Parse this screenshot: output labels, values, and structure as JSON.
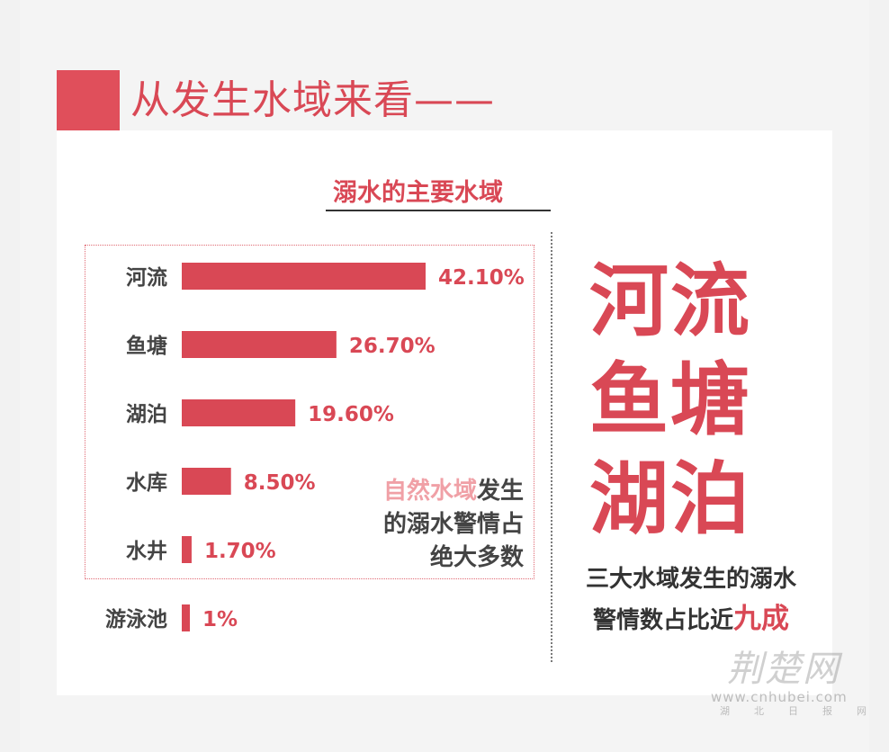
{
  "header": {
    "title": "从发生水域来看——"
  },
  "chart_data": {
    "type": "bar",
    "orientation": "horizontal",
    "title": "溺水的主要水域",
    "categories": [
      "河流",
      "鱼塘",
      "湖泊",
      "水库",
      "水井",
      "游泳池"
    ],
    "values": [
      42.1,
      26.7,
      19.6,
      8.5,
      1.7,
      1.0
    ],
    "value_labels": [
      "42.10%",
      "26.70%",
      "19.60%",
      "8.50%",
      "1.70%",
      "1%"
    ],
    "bar_color": "#d94855",
    "grid": false
  },
  "note": {
    "highlight": "自然水域",
    "rest_line1": "发生",
    "line2": "的溺水警情占",
    "line3": "绝大多数"
  },
  "highlight_words": [
    "河流",
    "鱼塘",
    "湖泊"
  ],
  "summary": {
    "line1": "三大水域发生的溺水",
    "line2_prefix": "警情数占比近",
    "line2_highlight": "九成"
  },
  "watermark": {
    "logo_text": "荆楚网",
    "url": "www.cnhubei.com",
    "sub": "湖北日报网"
  },
  "colors": {
    "accent": "#d94855",
    "note_highlight": "#f0a0a6"
  }
}
